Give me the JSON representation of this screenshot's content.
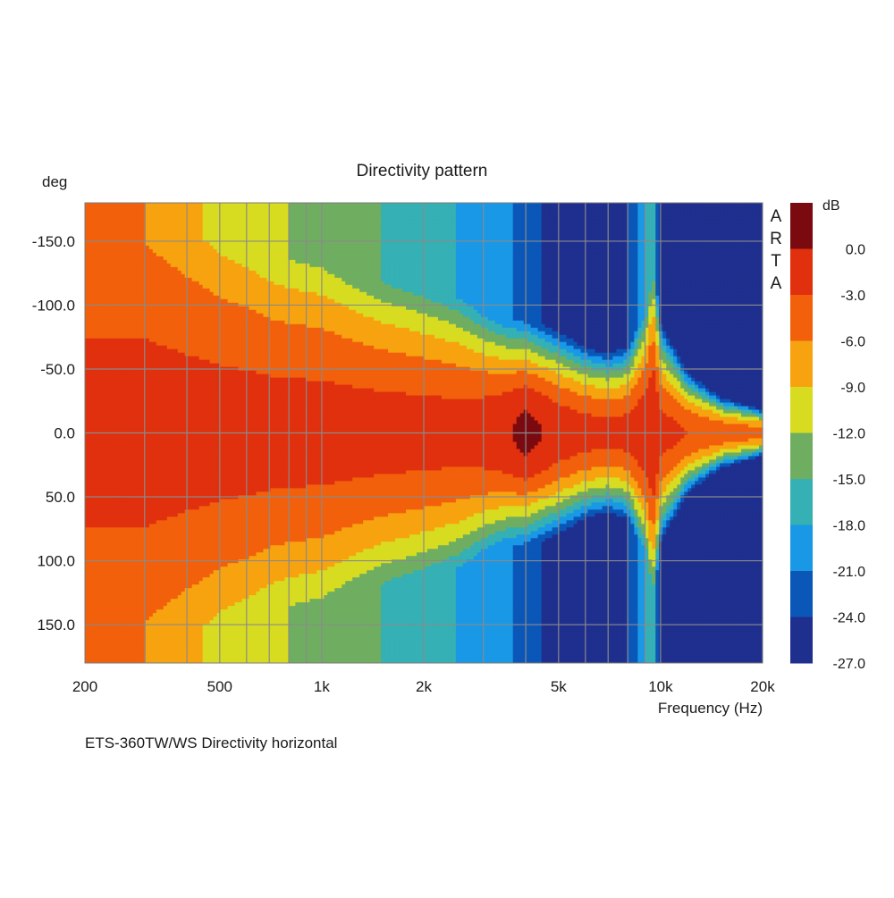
{
  "chart_data": {
    "type": "heatmap",
    "title": "Directivity pattern",
    "caption": "ETS-360TW/WS  Directivity horizontal",
    "brand": "ARTA",
    "xlabel": "Frequency (Hz)",
    "ylabel": "deg",
    "colorbar_label": "dB",
    "x_scale": "log",
    "xlim": [
      200,
      20000
    ],
    "ylim": [
      -180,
      180
    ],
    "x_ticks": [
      {
        "value": 200,
        "label": "200"
      },
      {
        "value": 500,
        "label": "500"
      },
      {
        "value": 1000,
        "label": "1k"
      },
      {
        "value": 2000,
        "label": "2k"
      },
      {
        "value": 5000,
        "label": "5k"
      },
      {
        "value": 10000,
        "label": "10k"
      },
      {
        "value": 20000,
        "label": "20k"
      }
    ],
    "y_ticks": [
      {
        "value": -150,
        "label": "-150.0"
      },
      {
        "value": -100,
        "label": "-100.0"
      },
      {
        "value": -50,
        "label": "-50.0"
      },
      {
        "value": 0,
        "label": "0.0"
      },
      {
        "value": 50,
        "label": "50.0"
      },
      {
        "value": 100,
        "label": "100.0"
      },
      {
        "value": 150,
        "label": "150.0"
      }
    ],
    "grid": true,
    "color_levels": [
      {
        "label": "0.0",
        "max": 3,
        "min": 0,
        "color": "#7a0a10"
      },
      {
        "label": "-3.0",
        "max": 0,
        "min": -3,
        "color": "#e0300e"
      },
      {
        "label": "-6.0",
        "max": -3,
        "min": -6,
        "color": "#f2600c"
      },
      {
        "label": "-9.0",
        "max": -6,
        "min": -9,
        "color": "#f7a30f"
      },
      {
        "label": "-12.0",
        "max": -9,
        "min": -12,
        "color": "#d8dc20"
      },
      {
        "label": "-15.0",
        "max": -12,
        "min": -15,
        "color": "#6fae60"
      },
      {
        "label": "-18.0",
        "max": -15,
        "min": -18,
        "color": "#35b0b4"
      },
      {
        "label": "-21.0",
        "max": -18,
        "min": -21,
        "color": "#1998e6"
      },
      {
        "label": "-24.0",
        "max": -21,
        "min": -24,
        "color": "#0a57b8"
      },
      {
        "label": "-27.0",
        "max": -24,
        "min": -27,
        "color": "#1e2f8e"
      }
    ],
    "directivity": {
      "description_free_values": true,
      "frequencies": [
        200,
        300,
        400,
        500,
        600,
        700,
        800,
        1000,
        1200,
        1500,
        2000,
        2500,
        3000,
        3500,
        4000,
        5000,
        6000,
        7000,
        8000,
        9000,
        9500,
        10000,
        12000,
        15000,
        20000
      ],
      "beamwidth_minus6": [
        180,
        180,
        150,
        130,
        120,
        110,
        105,
        100,
        90,
        80,
        72,
        65,
        55,
        48,
        45,
        40,
        35,
        32,
        35,
        55,
        80,
        45,
        25,
        15,
        10
      ],
      "off_axis_floor": [
        -3,
        -6,
        -8,
        -10,
        -11,
        -12,
        -12,
        -13,
        -14,
        -15,
        -17,
        -18,
        -19,
        -20,
        -23,
        -25,
        -25,
        -26,
        -24,
        -18,
        -15,
        -26,
        -27,
        -27,
        -27
      ],
      "on_axis": [
        -2,
        -2,
        -2,
        -2,
        -2,
        -2,
        -2,
        -2,
        -2,
        -2,
        -2,
        -2,
        -1.5,
        -0.5,
        1,
        -1,
        -2,
        -2,
        -2,
        -1,
        -0.5,
        -2,
        -3,
        -4,
        -5
      ]
    }
  }
}
